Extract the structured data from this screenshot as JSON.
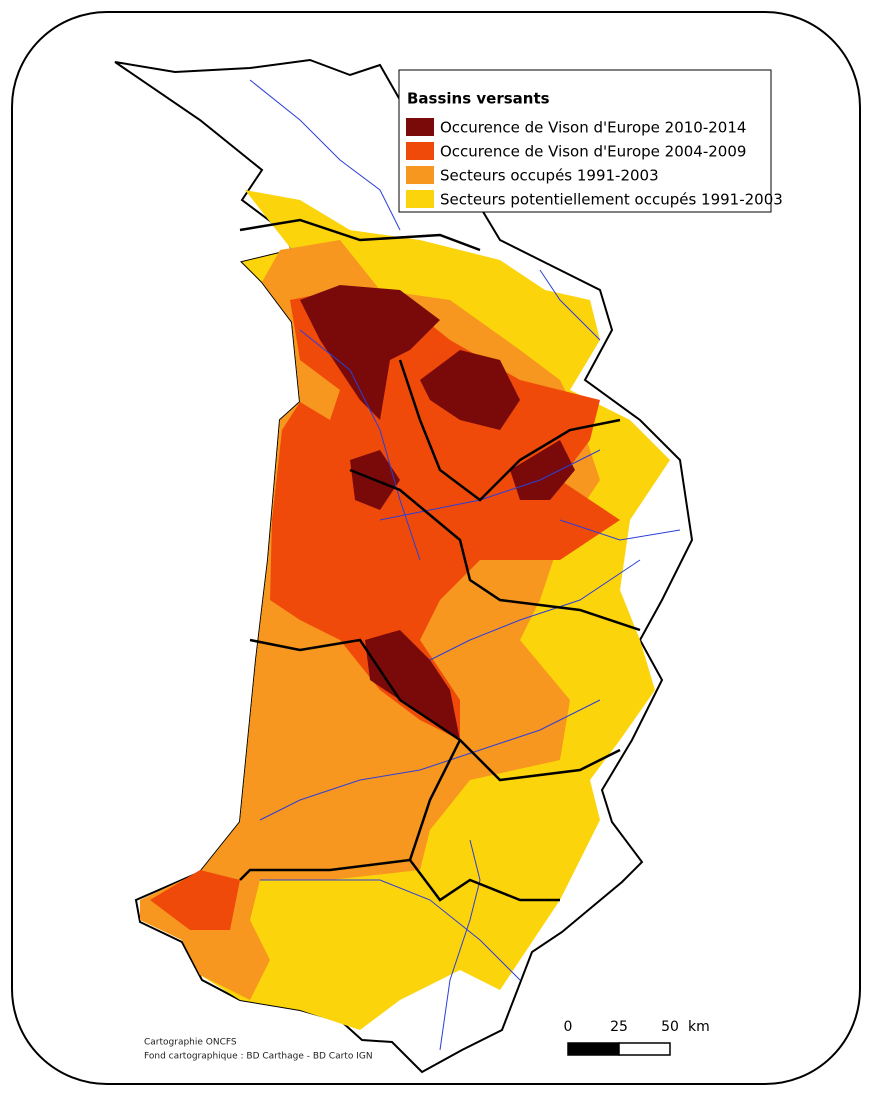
{
  "legend": {
    "title": "Bassins versants",
    "items": [
      {
        "label": "Occurence de Vison d'Europe 2010-2014",
        "color": "#7a0a0a"
      },
      {
        "label": "Occurence de Vison d'Europe 2004-2009",
        "color": "#f04a0a"
      },
      {
        "label": "Secteurs occupés 1991-2003",
        "color": "#f7971f"
      },
      {
        "label": "Secteurs potentiellement occupés 1991-2003",
        "color": "#fcd40b"
      }
    ]
  },
  "scale_bar": {
    "ticks": [
      0,
      25,
      50
    ],
    "unit": "km"
  },
  "credits": [
    "Cartographie ONCFS",
    "Fond cartographique : BD Carthage - BD Carto IGN"
  ]
}
